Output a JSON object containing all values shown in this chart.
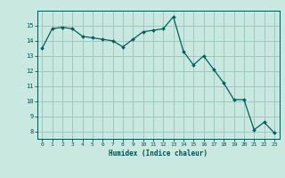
{
  "x": [
    0,
    1,
    2,
    3,
    4,
    5,
    6,
    7,
    8,
    9,
    10,
    11,
    12,
    13,
    14,
    15,
    16,
    17,
    18,
    19,
    20,
    21,
    22,
    23
  ],
  "y": [
    13.5,
    14.8,
    14.9,
    14.8,
    14.3,
    14.2,
    14.1,
    14.0,
    13.6,
    14.1,
    14.6,
    14.7,
    14.8,
    15.6,
    13.3,
    12.4,
    13.0,
    12.1,
    11.2,
    10.1,
    10.1,
    8.1,
    8.6,
    7.9
  ],
  "bg_color": "#c8e8e0",
  "grid_color": "#a0c8c0",
  "line_color": "#006060",
  "marker_color": "#006060",
  "xlabel": "Humidex (Indice chaleur)",
  "xlabel_color": "#005050",
  "tick_color": "#005050",
  "ylim": [
    7.5,
    16.0
  ],
  "xlim": [
    -0.5,
    23.5
  ],
  "yticks": [
    8,
    9,
    10,
    11,
    12,
    13,
    14,
    15
  ],
  "xticks": [
    0,
    1,
    2,
    3,
    4,
    5,
    6,
    7,
    8,
    9,
    10,
    11,
    12,
    13,
    14,
    15,
    16,
    17,
    18,
    19,
    20,
    21,
    22,
    23
  ]
}
